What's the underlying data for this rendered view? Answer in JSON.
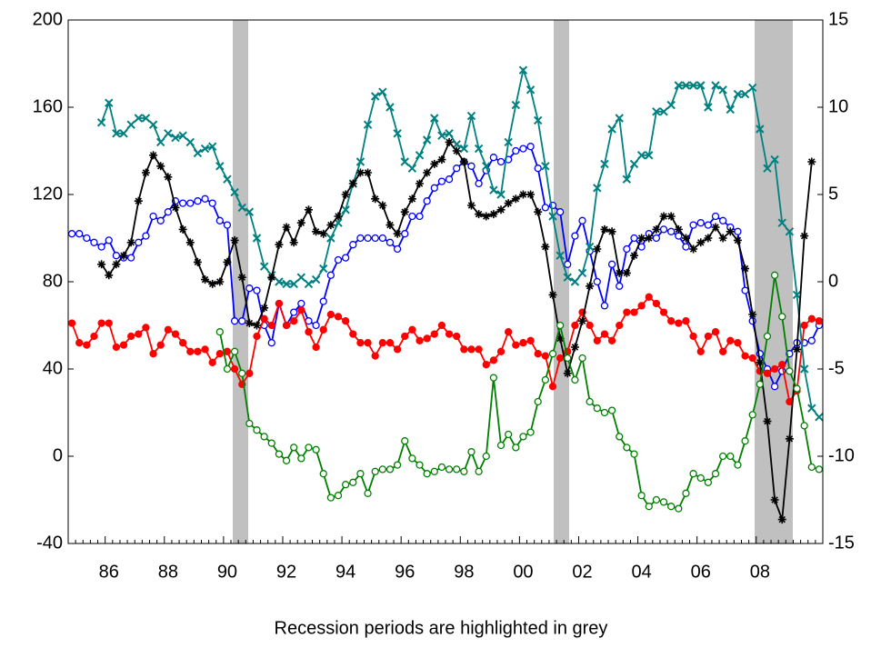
{
  "chart_data": {
    "type": "line",
    "categories": [
      null,
      null,
      null,
      null,
      null,
      "86",
      null,
      null,
      null,
      null,
      null,
      null,
      null,
      "88",
      null,
      null,
      null,
      null,
      null,
      null,
      null,
      "90",
      null,
      null,
      null,
      null,
      null,
      null,
      null,
      "92",
      null,
      null,
      null,
      null,
      null,
      null,
      null,
      "94",
      null,
      null,
      null,
      null,
      null,
      null,
      null,
      "96",
      null,
      null,
      null,
      null,
      null,
      null,
      null,
      "98",
      null,
      null,
      null,
      null,
      null,
      null,
      null,
      "00",
      null,
      null,
      null,
      null,
      null,
      null,
      null,
      "02",
      null,
      null,
      null,
      null,
      null,
      null,
      null,
      "04",
      null,
      null,
      null,
      null,
      null,
      null,
      null,
      "06",
      null,
      null,
      null,
      null,
      null,
      null,
      null,
      "08",
      null,
      null,
      null,
      null,
      null,
      null,
      null,
      null
    ],
    "ylim": [
      -40,
      200
    ],
    "yticks": [
      -40,
      0,
      40,
      80,
      120,
      160,
      200
    ],
    "y2lim": [
      -15,
      15
    ],
    "y2ticks": [
      -15,
      -10,
      -5,
      0,
      5,
      10,
      15
    ],
    "caption": "Recession periods are highlighted in grey",
    "series": [
      {
        "color": "#0000ff",
        "marker": "circle-open",
        "values": [
          102,
          102,
          100,
          98,
          96,
          99,
          92,
          91,
          91,
          98,
          101,
          110,
          108,
          112,
          117,
          116,
          116,
          117,
          118,
          116,
          108,
          106,
          62,
          62,
          77,
          76,
          60,
          52,
          70,
          60,
          66,
          70,
          62,
          60,
          71,
          83,
          90,
          91,
          97,
          100,
          100,
          100,
          100,
          98,
          95,
          102,
          110,
          110,
          117,
          123,
          126,
          127,
          132,
          135,
          133,
          125,
          131,
          137,
          135,
          136,
          140,
          141,
          142,
          132,
          114,
          115,
          112,
          88,
          101,
          108,
          94,
          80,
          69,
          88,
          78,
          95,
          100,
          96,
          102,
          100,
          104,
          103,
          101,
          96,
          106,
          107,
          106,
          110,
          108,
          105,
          103,
          76,
          62,
          47,
          40,
          32,
          39,
          47,
          52,
          52,
          53,
          60
        ]
      },
      {
        "color": "#ff0000",
        "marker": "circle",
        "values": [
          61,
          52,
          51,
          55,
          61,
          61,
          50,
          51,
          55,
          56,
          59,
          47,
          51,
          58,
          56,
          52,
          48,
          48,
          49,
          43,
          47,
          48,
          40,
          33,
          38,
          55,
          63,
          60,
          70,
          60,
          62,
          67,
          57,
          50,
          58,
          65,
          64,
          62,
          56,
          52,
          52,
          46,
          52,
          52,
          49,
          55,
          58,
          53,
          54,
          56,
          60,
          56,
          55,
          49,
          49,
          49,
          42,
          44,
          48,
          57,
          51,
          52,
          53,
          47,
          46,
          32,
          45,
          48,
          60,
          66,
          60,
          53,
          56,
          53,
          60,
          66,
          66,
          69,
          73,
          70,
          66,
          62,
          61,
          62,
          55,
          48,
          55,
          57,
          48,
          53,
          52,
          46,
          45,
          39,
          38,
          40,
          42,
          25,
          30,
          60,
          63,
          62
        ]
      },
      {
        "color": "#008080",
        "marker": "x",
        "values": [
          null,
          null,
          null,
          null,
          153,
          162,
          148,
          148,
          152,
          155,
          155,
          152,
          144,
          148,
          146,
          147,
          144,
          139,
          141,
          142,
          133,
          127,
          121,
          114,
          112,
          100,
          87,
          83,
          80,
          79,
          79,
          82,
          79,
          81,
          86,
          100,
          107,
          113,
          125,
          135,
          152,
          165,
          167,
          160,
          148,
          135,
          132,
          138,
          145,
          155,
          147,
          148,
          143,
          141,
          156,
          141,
          133,
          122,
          120,
          144,
          161,
          177,
          168,
          154,
          133,
          110,
          92,
          82,
          80,
          84,
          96,
          123,
          134,
          150,
          155,
          127,
          134,
          138,
          138,
          158,
          158,
          161,
          170,
          170,
          170,
          170,
          160,
          170,
          168,
          159,
          166,
          166,
          169,
          150,
          132,
          136,
          107,
          103,
          74,
          40,
          22,
          18
        ]
      },
      {
        "color": "#000000",
        "marker": "star",
        "values": [
          null,
          null,
          null,
          null,
          88,
          83,
          88,
          92,
          98,
          117,
          130,
          138,
          133,
          128,
          114,
          104,
          98,
          89,
          81,
          79,
          80,
          89,
          99,
          82,
          61,
          60,
          68,
          82,
          97,
          105,
          98,
          107,
          113,
          103,
          102,
          106,
          110,
          120,
          125,
          130,
          130,
          118,
          115,
          106,
          102,
          112,
          118,
          125,
          130,
          134,
          136,
          144,
          140,
          135,
          115,
          111,
          110,
          111,
          113,
          116,
          118,
          120,
          120,
          112,
          96,
          74,
          54,
          38,
          50,
          62,
          78,
          95,
          104,
          103,
          84,
          84,
          92,
          100,
          100,
          104,
          110,
          110,
          104,
          100,
          95,
          98,
          100,
          105,
          100,
          103,
          99,
          86,
          65,
          43,
          16,
          -20,
          -29,
          8,
          49,
          101,
          135,
          null
        ]
      },
      {
        "color": "#008000",
        "marker": "circle-open",
        "values": [
          null,
          null,
          null,
          null,
          null,
          null,
          null,
          null,
          null,
          null,
          null,
          null,
          null,
          null,
          null,
          null,
          null,
          null,
          null,
          null,
          57,
          40,
          48,
          38,
          15,
          12,
          9,
          6,
          1,
          -2,
          4,
          -1,
          4,
          3,
          -8,
          -19,
          -18,
          -13,
          -12,
          -8,
          -17,
          -7,
          -6,
          -6,
          -4,
          7,
          -1,
          -4,
          -8,
          -7,
          -5,
          -6,
          -6,
          -7,
          2,
          -7,
          0,
          36,
          5,
          10,
          4,
          9,
          11,
          25,
          35,
          47,
          60,
          45,
          35,
          45,
          25,
          22,
          20,
          21,
          9,
          4,
          1,
          -18,
          -23,
          -20,
          -21,
          -23,
          -24,
          -17,
          -8,
          -10,
          -12,
          -8,
          0,
          0,
          -4,
          7,
          19,
          33,
          55,
          83,
          64,
          39,
          31,
          14,
          -5,
          -6
        ]
      }
    ]
  }
}
